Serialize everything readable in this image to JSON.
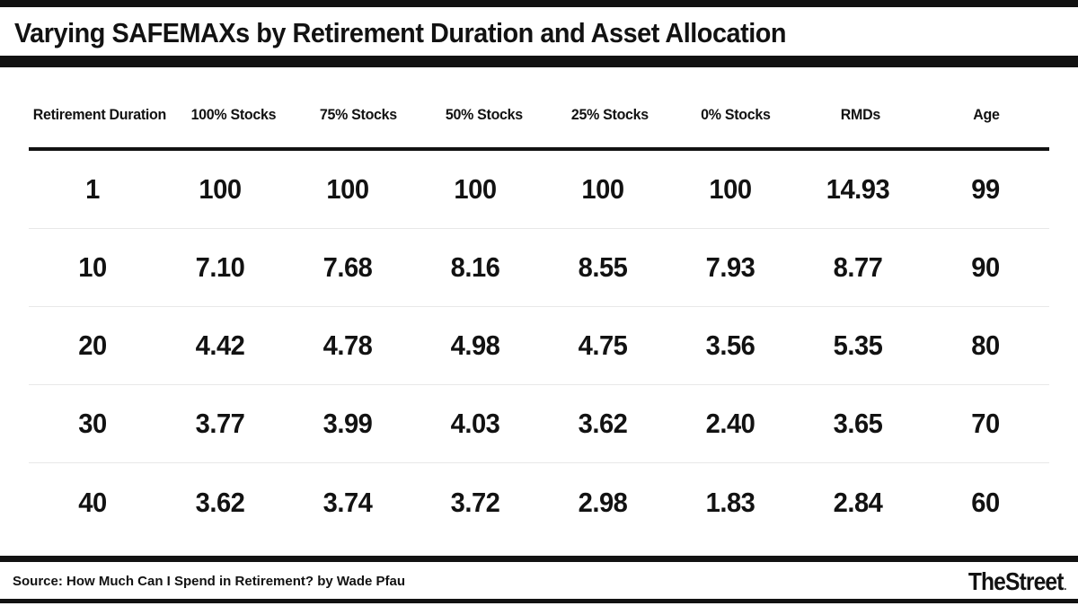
{
  "title": "Varying SAFEMAXs by Retirement Duration and Asset Allocation",
  "chart_data": {
    "type": "table",
    "title": "Varying SAFEMAXs by Retirement Duration and Asset Allocation",
    "columns": [
      "Retirement Duration",
      "100% Stocks",
      "75% Stocks",
      "50% Stocks",
      "25% Stocks",
      "0% Stocks",
      "RMDs",
      "Age"
    ],
    "rows": [
      [
        "1",
        "100",
        "100",
        "100",
        "100",
        "100",
        "14.93",
        "99"
      ],
      [
        "10",
        "7.10",
        "7.68",
        "8.16",
        "8.55",
        "7.93",
        "8.77",
        "90"
      ],
      [
        "20",
        "4.42",
        "4.78",
        "4.98",
        "4.75",
        "3.56",
        "5.35",
        "80"
      ],
      [
        "30",
        "3.77",
        "3.99",
        "4.03",
        "3.62",
        "2.40",
        "3.65",
        "70"
      ],
      [
        "40",
        "3.62",
        "3.74",
        "3.72",
        "2.98",
        "1.83",
        "2.84",
        "60"
      ]
    ]
  },
  "footer": {
    "source": "Source: How Much Can I Spend in Retirement? by Wade Pfau",
    "brand": "TheStreet",
    "brand_dot": "."
  },
  "colors": {
    "text": "#121212",
    "accent_bar": "#121212",
    "row_divider": "#e8e8e8",
    "background": "#ffffff"
  }
}
